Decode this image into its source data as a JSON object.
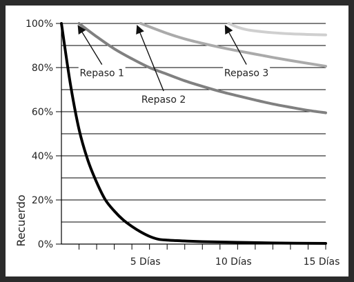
{
  "chart_data": {
    "type": "line",
    "title": "",
    "xlabel": "",
    "ylabel": "Recuerdo",
    "xlim": [
      0,
      15
    ],
    "ylim": [
      0,
      100
    ],
    "y_ticks": [
      {
        "value": 0,
        "label": "0%"
      },
      {
        "value": 20,
        "label": "20%"
      },
      {
        "value": 40,
        "label": "40%"
      },
      {
        "value": 60,
        "label": "60%"
      },
      {
        "value": 80,
        "label": "80%"
      },
      {
        "value": 100,
        "label": "100%"
      }
    ],
    "x_ticks": [
      {
        "value": 5,
        "label": "5 Días"
      },
      {
        "value": 10,
        "label": "10 Días"
      },
      {
        "value": 15,
        "label": "15 Días"
      }
    ],
    "grid": true,
    "series": [
      {
        "color": "#000000",
        "x": [
          0,
          0.5,
          1,
          1.5,
          2,
          2.5,
          3,
          3.5,
          4,
          4.5,
          5,
          5.5,
          6,
          7,
          8,
          10,
          12,
          15
        ],
        "y": [
          100,
          73,
          52,
          38,
          28,
          20,
          15,
          11,
          8,
          5.5,
          3.5,
          2.2,
          1.8,
          1.4,
          1.1,
          0.8,
          0.5,
          0.3
        ]
      },
      {
        "color": "#808080",
        "x": [
          1,
          2,
          3,
          4,
          5,
          6,
          7,
          8,
          9,
          10,
          11,
          12,
          13,
          14,
          15
        ],
        "y": [
          100,
          94,
          88.5,
          84,
          80,
          77,
          74,
          71.5,
          69.2,
          67.2,
          65.3,
          63.5,
          62,
          60.6,
          59.5
        ]
      },
      {
        "color": "#aaaaaa",
        "x": [
          4.5,
          6,
          7,
          8,
          9,
          10,
          11,
          12,
          13,
          14,
          15
        ],
        "y": [
          100,
          95.5,
          93,
          91,
          89.2,
          87.6,
          86.1,
          84.6,
          83.2,
          81.9,
          80.6
        ]
      },
      {
        "color": "#cfcfcf",
        "x": [
          9.5,
          10,
          10.5,
          11,
          12,
          13,
          14,
          15
        ],
        "y": [
          100,
          98.3,
          97.2,
          96.6,
          95.8,
          95.3,
          95,
          94.8
        ]
      }
    ],
    "annotations": [
      {
        "text": "Repaso 1",
        "label_x": 2.3,
        "label_y": 77,
        "arrow_to_x": 0.95,
        "arrow_to_y": 99
      },
      {
        "text": "Repaso 2",
        "label_x": 5.8,
        "label_y": 65,
        "arrow_to_x": 4.3,
        "arrow_to_y": 99
      },
      {
        "text": "Repaso 3",
        "label_x": 10.5,
        "label_y": 77,
        "arrow_to_x": 9.3,
        "arrow_to_y": 99
      }
    ]
  }
}
